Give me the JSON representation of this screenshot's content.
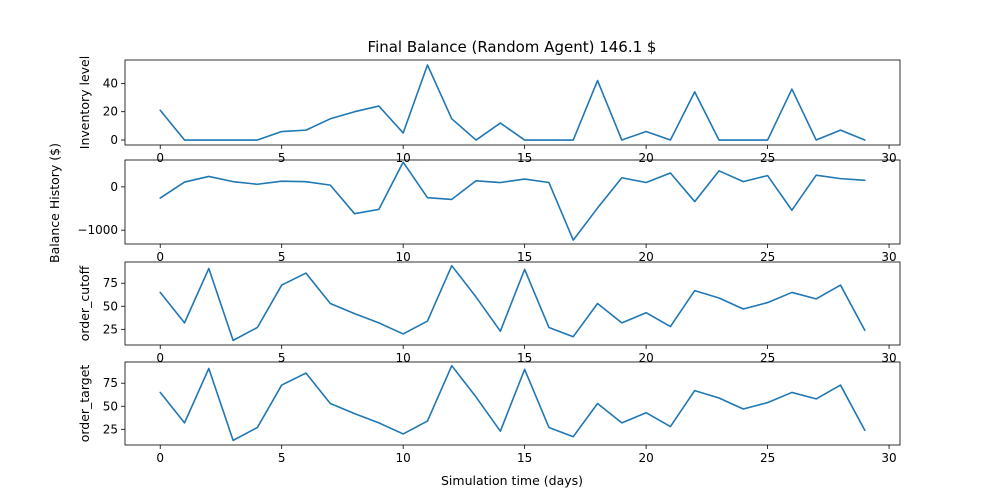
{
  "title": "Final Balance (Random Agent) 146.1 $",
  "xlabel": "Simulation time (days)",
  "shared_ylabel": "Balance History ($)",
  "line_color": "#1f77b4",
  "chart_data": [
    {
      "type": "line",
      "ylabel": "Inventory level",
      "x": [
        0,
        1,
        2,
        3,
        4,
        5,
        6,
        7,
        8,
        9,
        10,
        11,
        12,
        13,
        14,
        15,
        16,
        17,
        18,
        19,
        20,
        21,
        22,
        23,
        24,
        25,
        26,
        27,
        28,
        29
      ],
      "values": [
        21,
        0,
        0,
        0,
        0,
        6,
        7,
        15,
        20,
        24,
        5,
        53,
        15,
        0,
        12,
        0,
        0,
        0,
        42,
        0,
        6,
        0,
        34,
        0,
        0,
        0,
        36,
        0,
        7,
        0
      ],
      "xlim": [
        -1.45,
        30.45
      ],
      "ylim": [
        -3.5,
        56.5
      ],
      "xticks": [
        0,
        5,
        10,
        15,
        20,
        25,
        30
      ],
      "yticks": [
        0,
        20,
        40
      ]
    },
    {
      "type": "line",
      "ylabel": "",
      "x": [
        0,
        1,
        2,
        3,
        4,
        5,
        6,
        7,
        8,
        9,
        10,
        11,
        12,
        13,
        14,
        15,
        16,
        17,
        18,
        19,
        20,
        21,
        22,
        23,
        24,
        25,
        26,
        27,
        28,
        29
      ],
      "values": [
        -260,
        110,
        240,
        120,
        60,
        130,
        120,
        40,
        -620,
        -520,
        570,
        -250,
        -290,
        140,
        100,
        180,
        100,
        -1230,
        -490,
        210,
        100,
        320,
        -340,
        370,
        120,
        260,
        -540,
        270,
        190,
        150
      ],
      "xlim": [
        -1.45,
        30.45
      ],
      "ylim": [
        -1320,
        620
      ],
      "xticks": [
        0,
        5,
        10,
        15,
        20,
        25,
        30
      ],
      "yticks": [
        -1000,
        0
      ]
    },
    {
      "type": "line",
      "ylabel": "order_cutoff",
      "x": [
        0,
        1,
        2,
        3,
        4,
        5,
        6,
        7,
        8,
        9,
        10,
        11,
        12,
        13,
        14,
        15,
        16,
        17,
        18,
        19,
        20,
        21,
        22,
        23,
        24,
        25,
        26,
        27,
        28,
        29
      ],
      "values": [
        65,
        32,
        91,
        13,
        27,
        73,
        86,
        53,
        42,
        32,
        20,
        34,
        94,
        60,
        23,
        90,
        27,
        17,
        53,
        32,
        43,
        28,
        67,
        59,
        47,
        54,
        65,
        58,
        73,
        24
      ],
      "xlim": [
        -1.45,
        30.45
      ],
      "ylim": [
        8,
        98
      ],
      "xticks": [
        0,
        5,
        10,
        15,
        20,
        25,
        30
      ],
      "yticks": [
        25,
        50,
        75
      ]
    },
    {
      "type": "line",
      "ylabel": "order_target",
      "x": [
        0,
        1,
        2,
        3,
        4,
        5,
        6,
        7,
        8,
        9,
        10,
        11,
        12,
        13,
        14,
        15,
        16,
        17,
        18,
        19,
        20,
        21,
        22,
        23,
        24,
        25,
        26,
        27,
        28,
        29
      ],
      "values": [
        65,
        32,
        91,
        13,
        27,
        73,
        86,
        53,
        42,
        32,
        20,
        34,
        94,
        60,
        23,
        90,
        27,
        17,
        53,
        32,
        43,
        28,
        67,
        59,
        47,
        54,
        65,
        58,
        73,
        24
      ],
      "xlim": [
        -1.45,
        30.45
      ],
      "ylim": [
        8,
        98
      ],
      "xticks": [
        0,
        5,
        10,
        15,
        20,
        25,
        30
      ],
      "yticks": [
        25,
        50,
        75
      ]
    }
  ]
}
